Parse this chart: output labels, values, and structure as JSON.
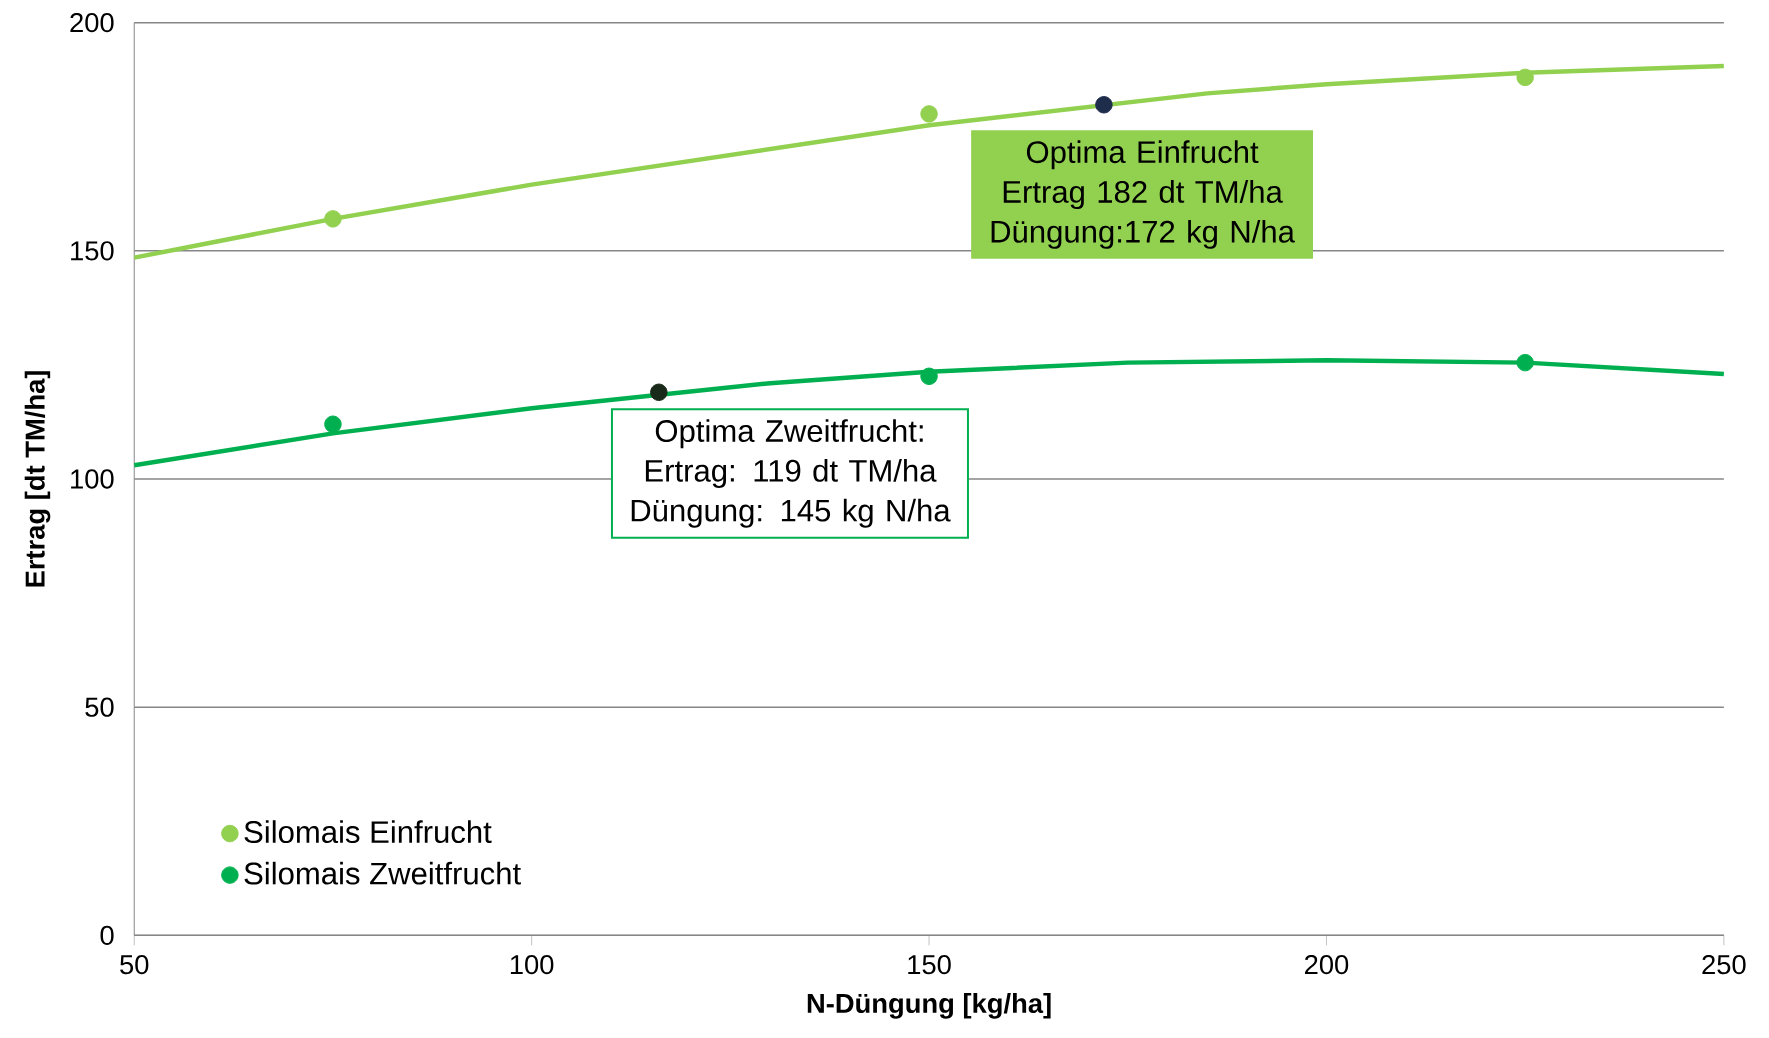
{
  "chart_data": {
    "type": "scatter",
    "xlabel": "N-Düngung [kg/ha]",
    "ylabel": "Ertrag [dt TM/ha]",
    "xlim": [
      50,
      250
    ],
    "ylim": [
      0,
      200
    ],
    "xticks": [
      50,
      100,
      150,
      200,
      250
    ],
    "yticks": [
      0,
      50,
      100,
      150,
      200
    ],
    "grid": "y",
    "legend": "bottom left",
    "marker": "circle",
    "series": [
      {
        "name": "Silomais  Einfrucht",
        "color": "#92d050",
        "x": [
          75,
          150,
          225
        ],
        "values": [
          157,
          180,
          188
        ]
      },
      {
        "name": "Silomais  Zweitfrucht",
        "color": "#00b050",
        "x": [
          75,
          150,
          225
        ],
        "values": [
          112,
          122.5,
          125.5
        ]
      },
      {
        "type": "line",
        "color": "#92d050",
        "marker": "none",
        "x": [
          50,
          75,
          100,
          125,
          150,
          185,
          200,
          225,
          250
        ],
        "values": [
          148.5,
          157,
          164.5,
          171,
          177.5,
          184.5,
          186.5,
          189,
          190.5
        ]
      },
      {
        "type": "line",
        "color": "#00b050",
        "marker": "none",
        "x": [
          50,
          75,
          100,
          130,
          150,
          175,
          200,
          225,
          250
        ],
        "values": [
          103,
          110,
          115.5,
          121,
          123.5,
          125.5,
          126,
          125.5,
          123
        ]
      },
      {
        "color": "#1f2d4d",
        "x": [
          172
        ],
        "values": [
          182
        ]
      },
      {
        "color": "#1a2a1a",
        "x": [
          116
        ],
        "values": [
          119
        ]
      }
    ],
    "annotations": [
      {
        "text": "Optima Einfrucht Ertrag 182 dt TM/ha Düngung:172 kg N/ha",
        "x": 172,
        "y": 182
      },
      {
        "text": "Optima Zweitfrucht: Ertrag: 119 dt TM/ha Düngung: 145 kg N/ha",
        "x": 116,
        "y": 119
      }
    ]
  }
}
